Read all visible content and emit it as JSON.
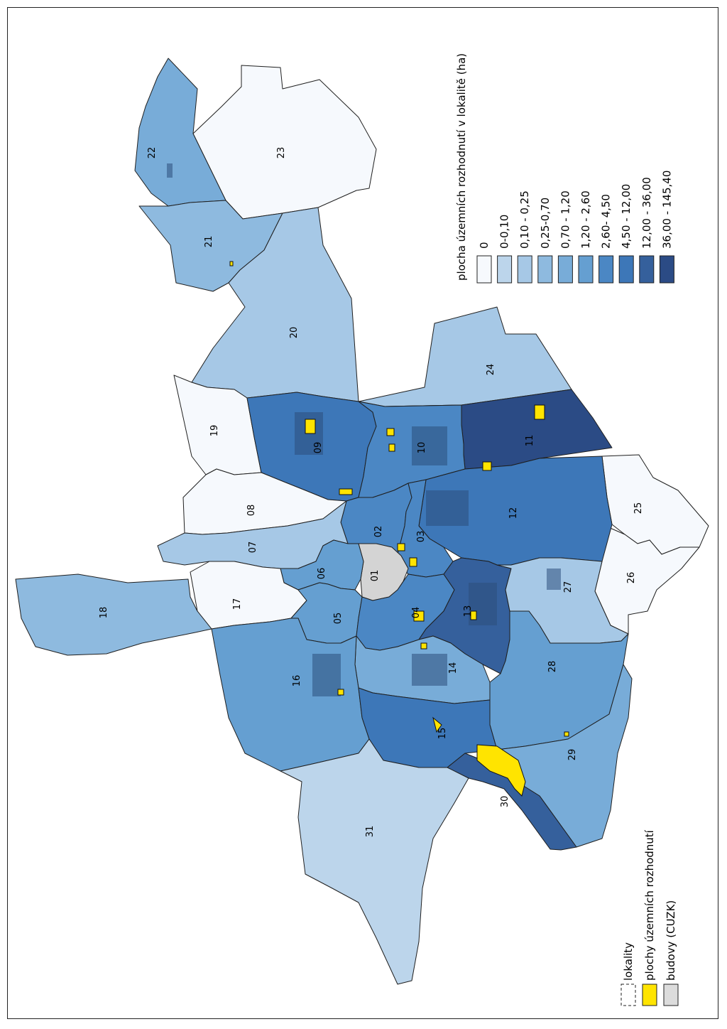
{
  "legend": {
    "title": "plocha územních rozhodnutí v lokalitě (ha)",
    "classes": [
      {
        "label": "0",
        "color": "#f6f9fd"
      },
      {
        "label": "0-0,10",
        "color": "#bcd5eb"
      },
      {
        "label": "0,10 - 0,25",
        "color": "#a6c8e6"
      },
      {
        "label": "0,25-0,70",
        "color": "#8ebadf"
      },
      {
        "label": "0,70 - 1,20",
        "color": "#78acd8"
      },
      {
        "label": "1,20 - 2,60",
        "color": "#659fd1"
      },
      {
        "label": "2,60- 4,50",
        "color": "#4b87c4"
      },
      {
        "label": "4,50 - 12,00",
        "color": "#3d77b8"
      },
      {
        "label": "12,00 - 36,00",
        "color": "#35609c"
      },
      {
        "label": "36,00 - 145,40",
        "color": "#2b4b85"
      }
    ]
  },
  "layers": {
    "lokality": "lokality",
    "plochy": "plochy územních rozhodnutí",
    "budovy": "budovy (CUZK)",
    "colors": {
      "plochy": "#ffe400",
      "budovy": "#dcdcdc"
    }
  },
  "districts": [
    {
      "id": "01",
      "label": "01",
      "color": "#d4d4d4"
    },
    {
      "id": "02",
      "label": "02",
      "color": "#4b87c4"
    },
    {
      "id": "03",
      "label": "03",
      "color": "#4b87c4"
    },
    {
      "id": "04",
      "label": "04",
      "color": "#4b87c4"
    },
    {
      "id": "05",
      "label": "05",
      "color": "#659fd1"
    },
    {
      "id": "06",
      "label": "06",
      "color": "#659fd1"
    },
    {
      "id": "07",
      "label": "07",
      "color": "#a6c8e6"
    },
    {
      "id": "08",
      "label": "08",
      "color": "#f6f9fd"
    },
    {
      "id": "09",
      "label": "09",
      "color": "#3d77b8"
    },
    {
      "id": "10",
      "label": "10",
      "color": "#4b87c4"
    },
    {
      "id": "11",
      "label": "11",
      "color": "#2b4b85"
    },
    {
      "id": "12",
      "label": "12",
      "color": "#3d77b8"
    },
    {
      "id": "13",
      "label": "13",
      "color": "#35609c"
    },
    {
      "id": "14",
      "label": "14",
      "color": "#78acd8"
    },
    {
      "id": "15",
      "label": "15",
      "color": "#3d77b8"
    },
    {
      "id": "16",
      "label": "16",
      "color": "#659fd1"
    },
    {
      "id": "17",
      "label": "17",
      "color": "#f6f9fd"
    },
    {
      "id": "18",
      "label": "18",
      "color": "#8ebadf"
    },
    {
      "id": "19",
      "label": "19",
      "color": "#f6f9fd"
    },
    {
      "id": "20",
      "label": "20",
      "color": "#a6c8e6"
    },
    {
      "id": "21",
      "label": "21",
      "color": "#8ebadf"
    },
    {
      "id": "22",
      "label": "22",
      "color": "#78acd8"
    },
    {
      "id": "23",
      "label": "23",
      "color": "#f6f9fd"
    },
    {
      "id": "24",
      "label": "24",
      "color": "#a6c8e6"
    },
    {
      "id": "25",
      "label": "25",
      "color": "#f6f9fd"
    },
    {
      "id": "26",
      "label": "26",
      "color": "#f6f9fd"
    },
    {
      "id": "27",
      "label": "27",
      "color": "#a6c8e6"
    },
    {
      "id": "28",
      "label": "28",
      "color": "#659fd1"
    },
    {
      "id": "29",
      "label": "29",
      "color": "#78acd8"
    },
    {
      "id": "30",
      "label": "30",
      "color": "#35609c"
    },
    {
      "id": "31",
      "label": "31",
      "color": "#bcd5eb"
    }
  ]
}
